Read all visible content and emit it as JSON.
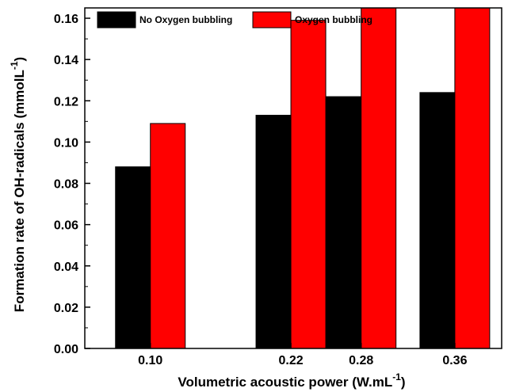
{
  "chart_data": {
    "type": "bar",
    "categories": [
      "0.10",
      "0.22",
      "0.28",
      "0.36"
    ],
    "x_values": [
      0.1,
      0.22,
      0.28,
      0.36
    ],
    "series": [
      {
        "name": "No Oxygen bubbling",
        "color": "#000000",
        "values": [
          0.088,
          0.113,
          0.122,
          0.124
        ]
      },
      {
        "name": "Oxygen bubbling",
        "color": "#ff0000",
        "values": [
          0.109,
          0.159,
          0.165,
          0.165
        ]
      }
    ],
    "xlabel": "Volumetric acoustic power (W.mL",
    "xlabel_sup": "-1",
    "xlabel_end": ")",
    "ylabel": "Formation rate of OH-radicals (mmolL",
    "ylabel_sup": "-1",
    "ylabel_end": ")",
    "ylim": [
      0,
      0.165
    ],
    "yticks": [
      "0.00",
      "0.02",
      "0.04",
      "0.06",
      "0.08",
      "0.10",
      "0.12",
      "0.14",
      "0.16"
    ],
    "ytick_values": [
      0,
      0.02,
      0.04,
      0.06,
      0.08,
      0.1,
      0.12,
      0.14,
      0.16
    ],
    "legend_position": "top-left",
    "grid": false
  }
}
